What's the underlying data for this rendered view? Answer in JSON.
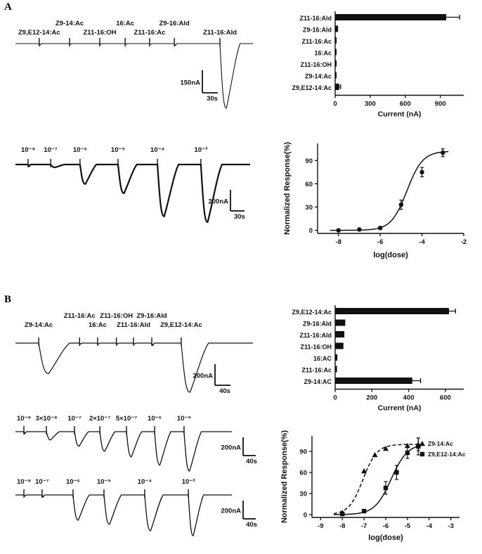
{
  "figure": {
    "panel_a_label": "A",
    "panel_b_label": "B",
    "colors": {
      "ink": "#111111",
      "background": "#ffffff"
    }
  },
  "chart_data": [
    {
      "id": "a-screening-trace",
      "type": "line",
      "description": "Panel A oocyte recording trace, screening of pheromone components",
      "stimuli": [
        {
          "label": "Z9,E12-14:Ac",
          "row": 2,
          "pos": 0.1,
          "rel_amp": 0.02
        },
        {
          "label": "Z9-14:Ac",
          "row": 1,
          "pos": 0.228,
          "rel_amp": 0.01
        },
        {
          "label": "Z11-16:OH",
          "row": 2,
          "pos": 0.355,
          "rel_amp": 0.01
        },
        {
          "label": "16:Ac",
          "row": 1,
          "pos": 0.462,
          "rel_amp": 0.01
        },
        {
          "label": "Z11-16:Ac",
          "row": 2,
          "pos": 0.565,
          "rel_amp": 0.01
        },
        {
          "label": "Z9-16:Ald",
          "row": 1,
          "pos": 0.669,
          "rel_amp": 0.03
        },
        {
          "label": "Z11-16:Ald",
          "row": 2,
          "pos": 0.861,
          "rel_amp": 1.0,
          "width": 0.085
        }
      ],
      "scalebar": {
        "v": "150nA",
        "h": "30s"
      }
    },
    {
      "id": "a-current-bar",
      "type": "bar",
      "orientation": "horizontal",
      "categories": [
        "Z11-16:Ald",
        "Z9-16:Ald",
        "Z11-16:Ac",
        "16:Ac",
        "Z11-16:OH",
        "Z9-14:Ac",
        "Z9,E12-14:Ac"
      ],
      "values": [
        950,
        25,
        10,
        8,
        8,
        10,
        35
      ],
      "errors": [
        115,
        0,
        0,
        0,
        0,
        0,
        12
      ],
      "xlabel": "Current (nA)",
      "xticks": [
        0,
        300,
        600,
        900
      ],
      "xlim": [
        0,
        1100
      ]
    },
    {
      "id": "a-dose-trace",
      "type": "line",
      "description": "Panel A dose-dependent response trace to Z11-16:Ald",
      "stimuli": [
        {
          "label": "10⁻⁸",
          "pos": 0.054,
          "rel_amp": 0.03
        },
        {
          "label": "10⁻⁷",
          "pos": 0.15,
          "rel_amp": 0.05
        },
        {
          "label": "10⁻⁶",
          "pos": 0.275,
          "rel_amp": 0.34,
          "width": 0.07
        },
        {
          "label": "10⁻⁵",
          "pos": 0.437,
          "rel_amp": 0.5,
          "width": 0.08
        },
        {
          "label": "10⁻⁴",
          "pos": 0.605,
          "rel_amp": 0.9,
          "width": 0.09
        },
        {
          "label": "10⁻³",
          "pos": 0.79,
          "rel_amp": 1.0,
          "width": 0.09
        }
      ],
      "scalebar": {
        "v": "200nA",
        "h": "30s"
      }
    },
    {
      "id": "a-dose-response",
      "type": "scatter",
      "xlabel": "log(dose)",
      "ylabel": "Normalized Response(%)",
      "xticks": [
        -8,
        -6,
        -4,
        -2
      ],
      "yticks": [
        0,
        30,
        60,
        90
      ],
      "xlim": [
        -9,
        -2
      ],
      "ylim": [
        -4,
        112
      ],
      "legend": false,
      "series": [
        {
          "name": "Z11-16:Ald",
          "marker": "circle",
          "line": "solid",
          "x": [
            -8,
            -7,
            -6,
            -5,
            -4,
            -3
          ],
          "y": [
            0,
            1,
            3,
            33,
            75,
            100
          ],
          "err": [
            0,
            0,
            2,
            6,
            6,
            5
          ],
          "fit": {
            "top": 102,
            "ec50": -4.72,
            "hill": 1.15
          }
        }
      ]
    },
    {
      "id": "b-screening-trace",
      "type": "line",
      "description": "Panel B oocyte recording trace, screening of pheromone components",
      "stimuli": [
        {
          "label": "Z9-14:Ac",
          "row": 2,
          "pos": 0.098,
          "rel_amp": 0.62,
          "width": 0.13
        },
        {
          "label": "Z11-16:Ac",
          "row": 1,
          "pos": 0.27,
          "rel_amp": 0.02
        },
        {
          "label": "16:Ac",
          "row": 2,
          "pos": 0.346,
          "rel_amp": 0.02
        },
        {
          "label": "Z11-16:OH",
          "row": 1,
          "pos": 0.425,
          "rel_amp": 0.02
        },
        {
          "label": "Z11-16:Ald",
          "row": 2,
          "pos": 0.497,
          "rel_amp": 0.02
        },
        {
          "label": "Z9-16:Ald",
          "row": 1,
          "pos": 0.574,
          "rel_amp": 0.05
        },
        {
          "label": "Z9,E12-14:Ac",
          "row": 2,
          "pos": 0.698,
          "rel_amp": 1.0,
          "width": 0.115
        }
      ],
      "scalebar": {
        "v": "200nA",
        "h": "40s"
      }
    },
    {
      "id": "b-current-bar",
      "type": "bar",
      "orientation": "horizontal",
      "categories": [
        "Z9,E12-14:Ac",
        "Z9-16:Ald",
        "Z11-16:Ald",
        "Z11-16:OH",
        "16:AC",
        "Z11-16:Ac",
        "Z9-14:AC"
      ],
      "values": [
        620,
        55,
        50,
        45,
        12,
        10,
        420
      ],
      "errors": [
        35,
        0,
        0,
        0,
        0,
        0,
        45
      ],
      "xlabel": "Current (nA)",
      "xticks": [
        0,
        200,
        400,
        600
      ],
      "xlim": [
        0,
        700
      ]
    },
    {
      "id": "b-dose-trace-fine",
      "type": "line",
      "description": "Panel B upper dose trace (fine dose steps)",
      "stimuli": [
        {
          "label": "10⁻⁸",
          "pos": 0.039,
          "rel_amp": 0.05
        },
        {
          "label": "3×10⁻⁸",
          "pos": 0.143,
          "rel_amp": 0.21
        },
        {
          "label": "10⁻⁷",
          "pos": 0.273,
          "rel_amp": 0.37,
          "width": 0.065
        },
        {
          "label": "2×10⁻⁷",
          "pos": 0.39,
          "rel_amp": 0.5,
          "width": 0.07
        },
        {
          "label": "5×10⁻⁷",
          "pos": 0.513,
          "rel_amp": 0.64,
          "width": 0.07
        },
        {
          "label": "10⁻⁶",
          "pos": 0.643,
          "rel_amp": 0.85,
          "width": 0.075
        },
        {
          "label": "10⁻⁵",
          "pos": 0.779,
          "rel_amp": 1.0,
          "width": 0.08
        }
      ],
      "scalebar": {
        "v": "200nA",
        "h": "40s"
      }
    },
    {
      "id": "b-dose-trace-decade",
      "type": "line",
      "description": "Panel B lower dose trace (decade dose steps)",
      "stimuli": [
        {
          "label": "10⁻⁸",
          "pos": 0.039,
          "rel_amp": 0.03
        },
        {
          "label": "10⁻⁷",
          "pos": 0.123,
          "rel_amp": 0.05
        },
        {
          "label": "10⁻⁶",
          "pos": 0.266,
          "rel_amp": 0.62,
          "width": 0.075
        },
        {
          "label": "10⁻⁵",
          "pos": 0.409,
          "rel_amp": 0.72,
          "width": 0.08
        },
        {
          "label": "10⁻⁴",
          "pos": 0.597,
          "rel_amp": 0.88,
          "width": 0.085
        },
        {
          "label": "10⁻³",
          "pos": 0.799,
          "rel_amp": 1.0,
          "width": 0.07
        }
      ],
      "scalebar": {
        "v": "200nA",
        "h": "40s"
      }
    },
    {
      "id": "b-dose-response",
      "type": "scatter",
      "xlabel": "log(dose)",
      "ylabel": "Normalized Response(%)",
      "xticks": [
        -9,
        -8,
        -7,
        -6,
        -5,
        -4,
        -3
      ],
      "yticks": [
        0,
        30,
        60,
        90
      ],
      "xlim": [
        -9.4,
        -2.6
      ],
      "ylim": [
        -4,
        112
      ],
      "legend": true,
      "series": [
        {
          "name": "Z9-14:Ac",
          "marker": "triangle",
          "line": "dashed",
          "x": [
            -8,
            -7,
            -6.5,
            -6,
            -5,
            -4.5
          ],
          "y": [
            3,
            62,
            85,
            94,
            98,
            100
          ],
          "err": [
            0,
            0,
            0,
            0,
            0,
            9
          ],
          "fit": {
            "top": 100,
            "ec50": -7.05,
            "hill": 1.35
          }
        },
        {
          "name": "Z9,E12-14:Ac",
          "marker": "square",
          "line": "solid",
          "x": [
            -8,
            -7,
            -6,
            -5.5,
            -5,
            -4.5
          ],
          "y": [
            1,
            5,
            38,
            60,
            88,
            97
          ],
          "err": [
            0,
            0,
            9,
            10,
            8,
            12
          ],
          "fit": {
            "top": 101,
            "ec50": -5.75,
            "hill": 1.15
          }
        }
      ]
    }
  ]
}
